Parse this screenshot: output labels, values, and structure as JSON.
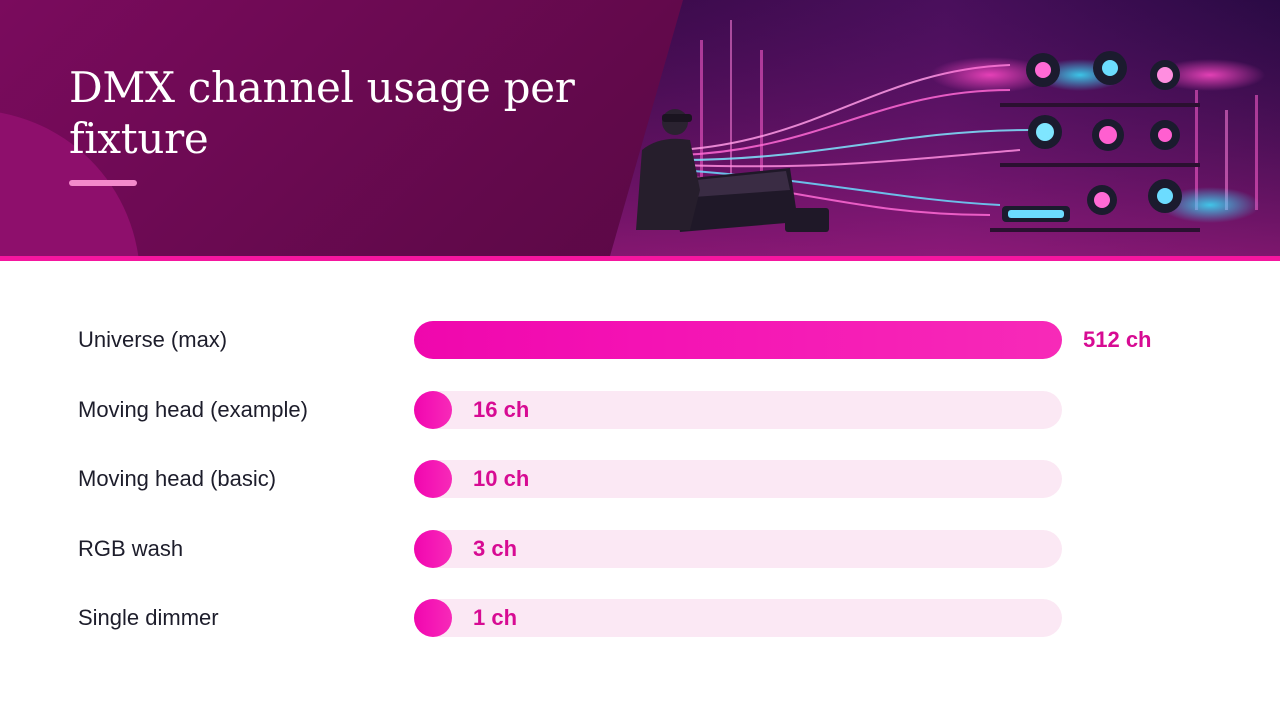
{
  "header": {
    "title": "DMX channel usage per fixture"
  },
  "colors": {
    "header_bg": "#62094b",
    "accent": "#f5169f",
    "bar_fill": "#f412b4",
    "bar_track": "#fbe8f4",
    "value_text": "#d70b93"
  },
  "chart_data": {
    "type": "bar",
    "orientation": "horizontal",
    "categories": [
      "Universe (max)",
      "Moving head (example)",
      "Moving head (basic)",
      "RGB wash",
      "Single dimmer"
    ],
    "values": [
      512,
      16,
      10,
      3,
      1
    ],
    "value_labels": [
      "512 ch",
      "16 ch",
      "10 ch",
      "3 ch",
      "1 ch"
    ],
    "xlim": [
      0,
      512
    ],
    "grid": false,
    "legend": "none"
  }
}
